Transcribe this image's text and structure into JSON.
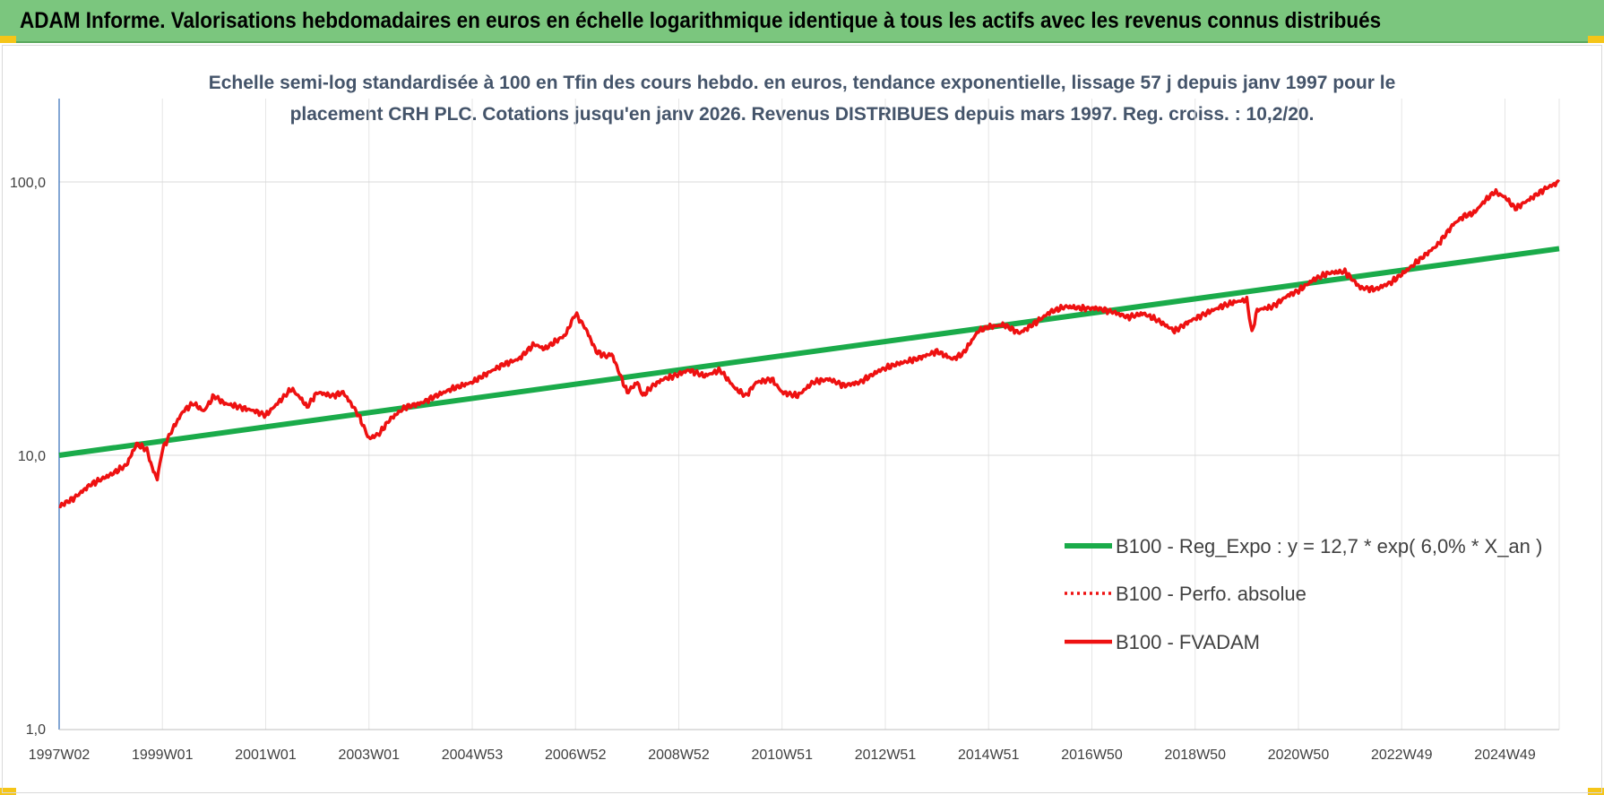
{
  "header": {
    "title": "ADAM Informe. Valorisations hebdomadaires en euros en échelle logarithmique identique à tous les actifs avec les revenus connus distribués"
  },
  "chart_data": {
    "type": "line",
    "title_line1": "Echelle semi-log standardisée à 100 en Tfin des cours hebdo. en euros, tendance exponentielle, lissage 57 j depuis janv 1997 pour le",
    "title_line2": "placement CRH PLC. Cotations jusqu'en janv 2026. Revenus DISTRIBUES depuis mars 1997. Reg. croiss. : 10,2/20.",
    "y_scale": "log",
    "ylim": [
      1,
      200
    ],
    "y_ticks": [
      1,
      10,
      100
    ],
    "y_tick_labels": [
      "1,0",
      "10,0",
      "100,0"
    ],
    "x_range": [
      1997.0,
      2026.05
    ],
    "x_ticks": [
      1997.0,
      1999.0,
      2001.0,
      2003.0,
      2005.0,
      2007.0,
      2009.0,
      2011.0,
      2013.0,
      2015.0,
      2017.0,
      2019.0,
      2021.0,
      2023.0,
      2025.0
    ],
    "x_tick_labels": [
      "1997W02",
      "1999W01",
      "2001W01",
      "2003W01",
      "2004W53",
      "2006W52",
      "2008W52",
      "2010W51",
      "2012W51",
      "2014W51",
      "2016W50",
      "2018W50",
      "2020W50",
      "2022W49",
      "2024W49"
    ],
    "grid": true,
    "legend_position": "right",
    "colors": {
      "regression": "#1aab4a",
      "fvadam": "#ee1111",
      "perfo": "#ee1111"
    },
    "series": [
      {
        "name": "B100 - Reg_Expo : y = 12,7 * exp( 6,0% *  X_an )",
        "style": "solid-thick",
        "x": [
          1997.0,
          2026.05
        ],
        "y": [
          10.0,
          57.0
        ]
      },
      {
        "name": "B100 - Perfo. absolue",
        "style": "dotted",
        "x": [],
        "y": []
      },
      {
        "name": "B100 - FVADAM",
        "style": "solid",
        "x": [
          1997.0,
          1997.3,
          1997.6,
          1998.0,
          1998.3,
          1998.5,
          1998.7,
          1998.8,
          1998.9,
          1999.0,
          1999.2,
          1999.4,
          1999.6,
          1999.8,
          2000.0,
          2000.2,
          2000.5,
          2000.8,
          2001.0,
          2001.3,
          2001.5,
          2001.7,
          2001.8,
          2002.0,
          2002.3,
          2002.5,
          2002.7,
          2002.8,
          2003.0,
          2003.2,
          2003.4,
          2003.7,
          2004.0,
          2004.3,
          2004.6,
          2005.0,
          2005.3,
          2005.6,
          2005.9,
          2006.2,
          2006.4,
          2006.6,
          2006.8,
          2007.0,
          2007.2,
          2007.4,
          2007.6,
          2007.7,
          2008.0,
          2008.2,
          2008.3,
          2008.5,
          2008.7,
          2008.9,
          2009.2,
          2009.5,
          2009.8,
          2010.1,
          2010.3,
          2010.5,
          2010.8,
          2011.0,
          2011.3,
          2011.6,
          2011.9,
          2012.2,
          2012.5,
          2012.9,
          2013.2,
          2013.6,
          2014.0,
          2014.3,
          2014.5,
          2014.8,
          2015.0,
          2015.3,
          2015.6,
          2015.9,
          2016.2,
          2016.5,
          2016.8,
          2017.1,
          2017.4,
          2017.7,
          2018.0,
          2018.3,
          2018.6,
          2018.9,
          2019.2,
          2019.5,
          2019.8,
          2020.0,
          2020.1,
          2020.2,
          2020.5,
          2020.8,
          2021.0,
          2021.3,
          2021.6,
          2021.9,
          2022.2,
          2022.5,
          2022.8,
          2023.1,
          2023.4,
          2023.7,
          2024.0,
          2024.2,
          2024.4,
          2024.6,
          2024.8,
          2025.0,
          2025.2,
          2025.5,
          2025.8,
          2026.05
        ],
        "y": [
          6.5,
          7.0,
          7.8,
          8.5,
          9.2,
          11.0,
          10.5,
          9.0,
          8.2,
          10.5,
          12.5,
          14.5,
          15.5,
          14.5,
          16.5,
          15.5,
          15.0,
          14.5,
          14.0,
          16.0,
          17.5,
          16.0,
          15.0,
          17.0,
          16.5,
          17.0,
          15.0,
          14.0,
          11.5,
          12.0,
          13.5,
          15.0,
          15.5,
          16.5,
          17.5,
          18.5,
          20.0,
          21.5,
          22.5,
          25.5,
          24.5,
          26.0,
          27.5,
          33.0,
          29.0,
          24.0,
          23.0,
          23.5,
          17.0,
          18.5,
          16.5,
          18.0,
          19.0,
          19.5,
          20.5,
          19.5,
          20.5,
          17.5,
          16.5,
          18.5,
          19.0,
          17.0,
          16.5,
          18.5,
          19.0,
          18.0,
          18.5,
          20.5,
          21.5,
          22.5,
          24.0,
          22.5,
          23.5,
          28.5,
          29.5,
          30.0,
          28.0,
          30.5,
          33.5,
          35.0,
          34.5,
          34.5,
          33.5,
          32.0,
          33.0,
          31.0,
          28.5,
          31.0,
          33.0,
          35.0,
          36.5,
          37.0,
          28.0,
          34.0,
          35.0,
          38.5,
          40.0,
          44.0,
          46.5,
          47.0,
          41.0,
          40.5,
          43.0,
          47.5,
          53.0,
          59.0,
          70.0,
          75.0,
          77.0,
          85.0,
          92.0,
          88.0,
          80.0,
          87.0,
          95.0,
          100.0
        ]
      }
    ]
  }
}
